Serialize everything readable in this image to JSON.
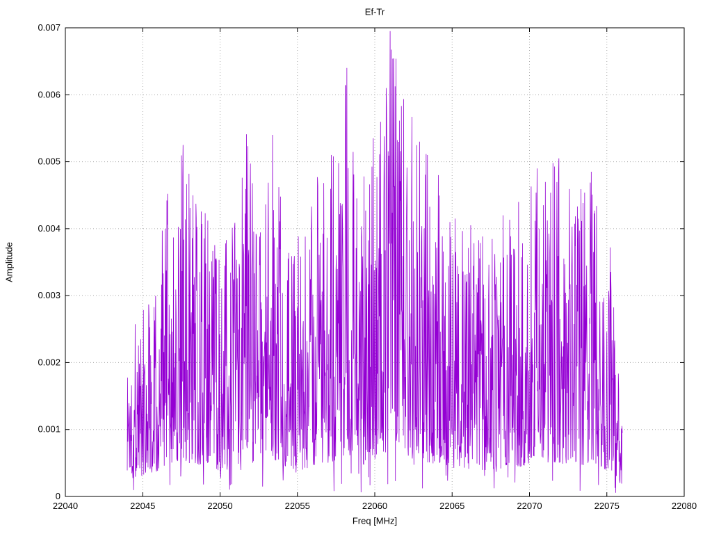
{
  "chart_data": {
    "type": "line",
    "title": "Ef-Tr",
    "xlabel": "Freq [MHz]",
    "ylabel": "Amplitude",
    "xlim": [
      22040,
      22080
    ],
    "ylim": [
      0,
      0.007
    ],
    "x_ticks": [
      22040,
      22045,
      22050,
      22055,
      22060,
      22065,
      22070,
      22075,
      22080
    ],
    "x_tick_labels": [
      "22040",
      "22045",
      "22050",
      "22055",
      "22060",
      "22065",
      "22070",
      "22075",
      "22080"
    ],
    "y_ticks": [
      0,
      0.001,
      0.002,
      0.003,
      0.004,
      0.005,
      0.006,
      0.007
    ],
    "y_tick_labels": [
      "0",
      "0.001",
      "0.002",
      "0.003",
      "0.004",
      "0.005",
      "0.006",
      "0.007"
    ],
    "grid": true,
    "legend": "none",
    "line_color": "#9400d3",
    "grid_color": "#a8a8a8",
    "axis_color": "#000000",
    "background_color": "#ffffff",
    "signal_range": [
      22044,
      22076
    ],
    "typical_level": 0.0018,
    "noise_floor_range": [
      0.0003,
      0.003
    ],
    "envelope": [
      [
        22044.0,
        0.00235
      ],
      [
        22045.0,
        0.0031
      ],
      [
        22046.0,
        0.00375
      ],
      [
        22046.6,
        0.00452
      ],
      [
        22047.6,
        0.00525
      ],
      [
        22048.2,
        0.00482
      ],
      [
        22049.2,
        0.00412
      ],
      [
        22050.2,
        0.00375
      ],
      [
        22051.7,
        0.00541
      ],
      [
        22052.5,
        0.0041
      ],
      [
        22053.4,
        0.0054
      ],
      [
        22054.5,
        0.00415
      ],
      [
        22055.5,
        0.00388
      ],
      [
        22056.3,
        0.00477
      ],
      [
        22057.2,
        0.0051
      ],
      [
        22058.2,
        0.0064
      ],
      [
        22059.3,
        0.00478
      ],
      [
        22059.9,
        0.00535
      ],
      [
        22061.0,
        0.00695
      ],
      [
        22062.4,
        0.00567
      ],
      [
        22063.4,
        0.0051
      ],
      [
        22064.1,
        0.0048
      ],
      [
        22065.2,
        0.00415
      ],
      [
        22066.2,
        0.00405
      ],
      [
        22067.2,
        0.0039
      ],
      [
        22068.3,
        0.0042
      ],
      [
        22069.3,
        0.0044
      ],
      [
        22070.5,
        0.0049
      ],
      [
        22071.9,
        0.00505
      ],
      [
        22072.8,
        0.00445
      ],
      [
        22074.0,
        0.00485
      ],
      [
        22075.2,
        0.00372
      ],
      [
        22075.9,
        0.0016
      ]
    ],
    "peaks": [
      [
        22046.6,
        0.00452
      ],
      [
        22047.6,
        0.00525
      ],
      [
        22048.0,
        0.00482
      ],
      [
        22049.2,
        0.00412
      ],
      [
        22051.7,
        0.00541
      ],
      [
        22053.4,
        0.0054
      ],
      [
        22055.5,
        0.00388
      ],
      [
        22056.3,
        0.00477
      ],
      [
        22057.2,
        0.0051
      ],
      [
        22058.2,
        0.0064
      ],
      [
        22059.3,
        0.00478
      ],
      [
        22059.9,
        0.00535
      ],
      [
        22061.0,
        0.00695
      ],
      [
        22062.4,
        0.00567
      ],
      [
        22062.9,
        0.0053
      ],
      [
        22063.4,
        0.0051
      ],
      [
        22064.1,
        0.0048
      ],
      [
        22065.2,
        0.00415
      ],
      [
        22066.2,
        0.00405
      ],
      [
        22068.3,
        0.0042
      ],
      [
        22069.3,
        0.0044
      ],
      [
        22070.5,
        0.0049
      ],
      [
        22071.9,
        0.00505
      ],
      [
        22074.0,
        0.00485
      ],
      [
        22075.2,
        0.00372
      ]
    ],
    "synthesis": {
      "seed": 1337,
      "points": 1500,
      "min_frac": 0.1,
      "pow": 1.55,
      "drop_prob": 0.05,
      "drop_frac": 0.12,
      "line_width": 0.8
    }
  }
}
